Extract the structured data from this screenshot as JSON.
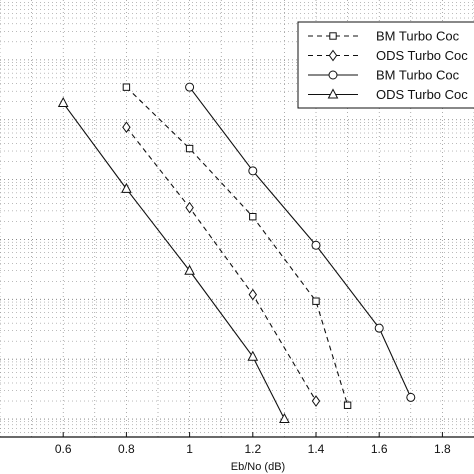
{
  "chart_data": {
    "type": "line",
    "title": "",
    "xlabel": "Eb/No (dB)",
    "ylabel": "",
    "xlim": [
      0.4,
      1.9
    ],
    "ylim_log": [
      -7.3,
      0
    ],
    "y_scale": "log",
    "grid": true,
    "legend_position": "top-right",
    "x_ticks": [
      0.6,
      0.8,
      1,
      1.2,
      1.4,
      1.6,
      1.8
    ],
    "x_tick_labels": [
      "0.6",
      "0.8",
      "1",
      "1.2",
      "1.4",
      "1.6",
      "1.8"
    ],
    "series": [
      {
        "name": "BM  Turbo Coc",
        "line": "dashed",
        "marker": "square",
        "points": [
          [
            0.8,
            0.035
          ],
          [
            1.0,
            0.0033
          ],
          [
            1.2,
            0.00024
          ],
          [
            1.4,
            9.3e-06
          ],
          [
            1.5,
            1.7e-07
          ]
        ]
      },
      {
        "name": "ODS Turbo Coc",
        "line": "dashed",
        "marker": "diamond",
        "points": [
          [
            0.8,
            0.0075
          ],
          [
            1.0,
            0.00034
          ],
          [
            1.2,
            1.2e-05
          ],
          [
            1.4,
            2e-07
          ]
        ]
      },
      {
        "name": "BM  Turbo Coc",
        "line": "solid",
        "marker": "circle",
        "points": [
          [
            1.0,
            0.035
          ],
          [
            1.2,
            0.0014
          ],
          [
            1.4,
            8e-05
          ],
          [
            1.6,
            3.3e-06
          ],
          [
            1.7,
            2.3e-07
          ]
        ]
      },
      {
        "name": "ODS Turbo Coc",
        "line": "solid",
        "marker": "triangle",
        "points": [
          [
            0.6,
            0.019
          ],
          [
            0.8,
            0.0007
          ],
          [
            1.0,
            3e-05
          ],
          [
            1.2,
            1.1e-06
          ],
          [
            1.3,
            1e-07
          ]
        ]
      }
    ]
  }
}
